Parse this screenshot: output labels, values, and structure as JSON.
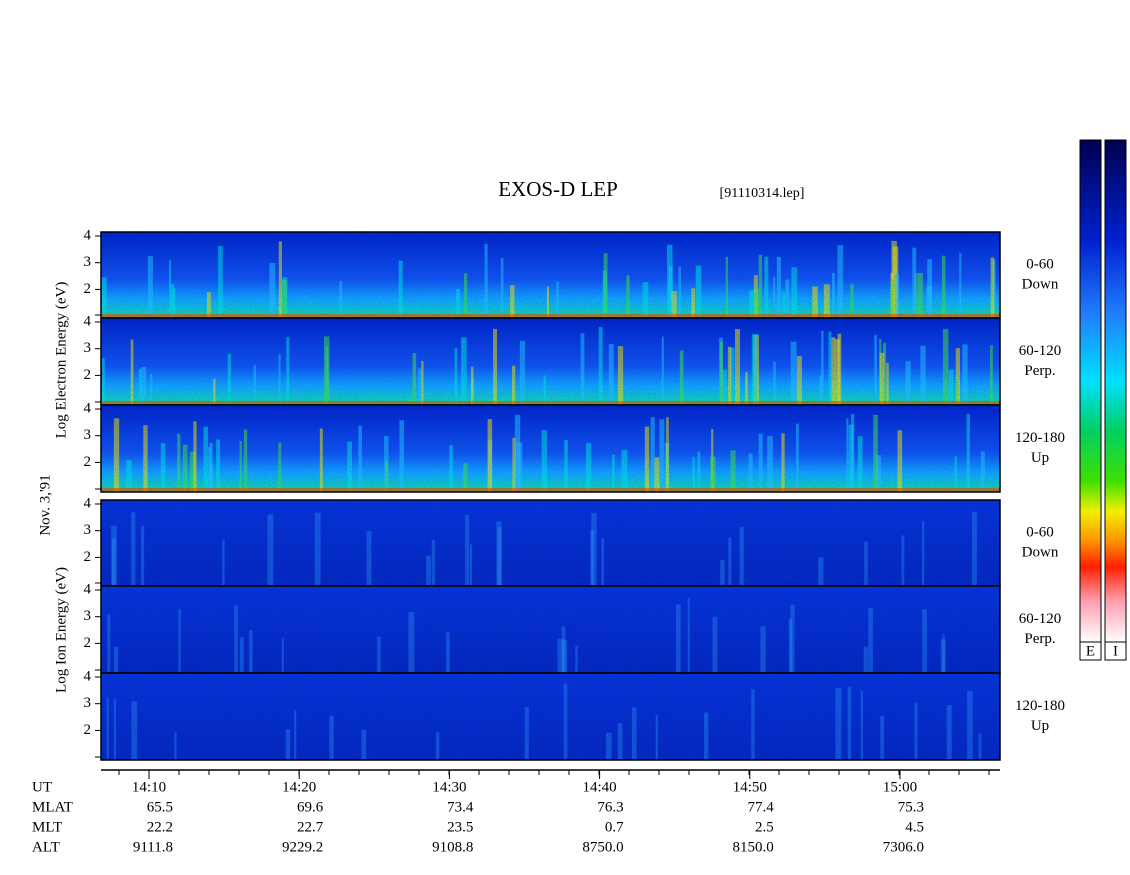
{
  "header": {
    "title": "EXOS-D LEP",
    "file": "[91110314.lep]"
  },
  "date": "Nov. 3,'91",
  "energy_ticks": [
    "4",
    "3",
    "2"
  ],
  "electron": {
    "axis_label": "Log Electron Energy (eV)",
    "panels": [
      {
        "range": "0-60",
        "direction": "Down"
      },
      {
        "range": "60-120",
        "direction": "Perp."
      },
      {
        "range": "120-180",
        "direction": "Up"
      }
    ]
  },
  "ion": {
    "axis_label": "Log Ion Energy (eV)",
    "panels": [
      {
        "range": "0-60",
        "direction": "Down"
      },
      {
        "range": "60-120",
        "direction": "Perp."
      },
      {
        "range": "120-180",
        "direction": "Up"
      }
    ]
  },
  "time_axis": {
    "label": "UT",
    "ticks": [
      "14:10",
      "14:20",
      "14:30",
      "14:40",
      "14:50",
      "15:00"
    ]
  },
  "ephemeris": [
    {
      "label": "MLAT",
      "values": [
        "65.5",
        "69.6",
        "73.4",
        "76.3",
        "77.4",
        "75.3"
      ]
    },
    {
      "label": "MLT",
      "values": [
        "22.2",
        "22.7",
        "23.5",
        "0.7",
        "2.5",
        "4.5"
      ]
    },
    {
      "label": "ALT",
      "values": [
        "9111.8",
        "9229.2",
        "9108.8",
        "8750.0",
        "8150.0",
        "7306.0"
      ]
    }
  ],
  "colorbars": [
    "E",
    "I"
  ]
}
